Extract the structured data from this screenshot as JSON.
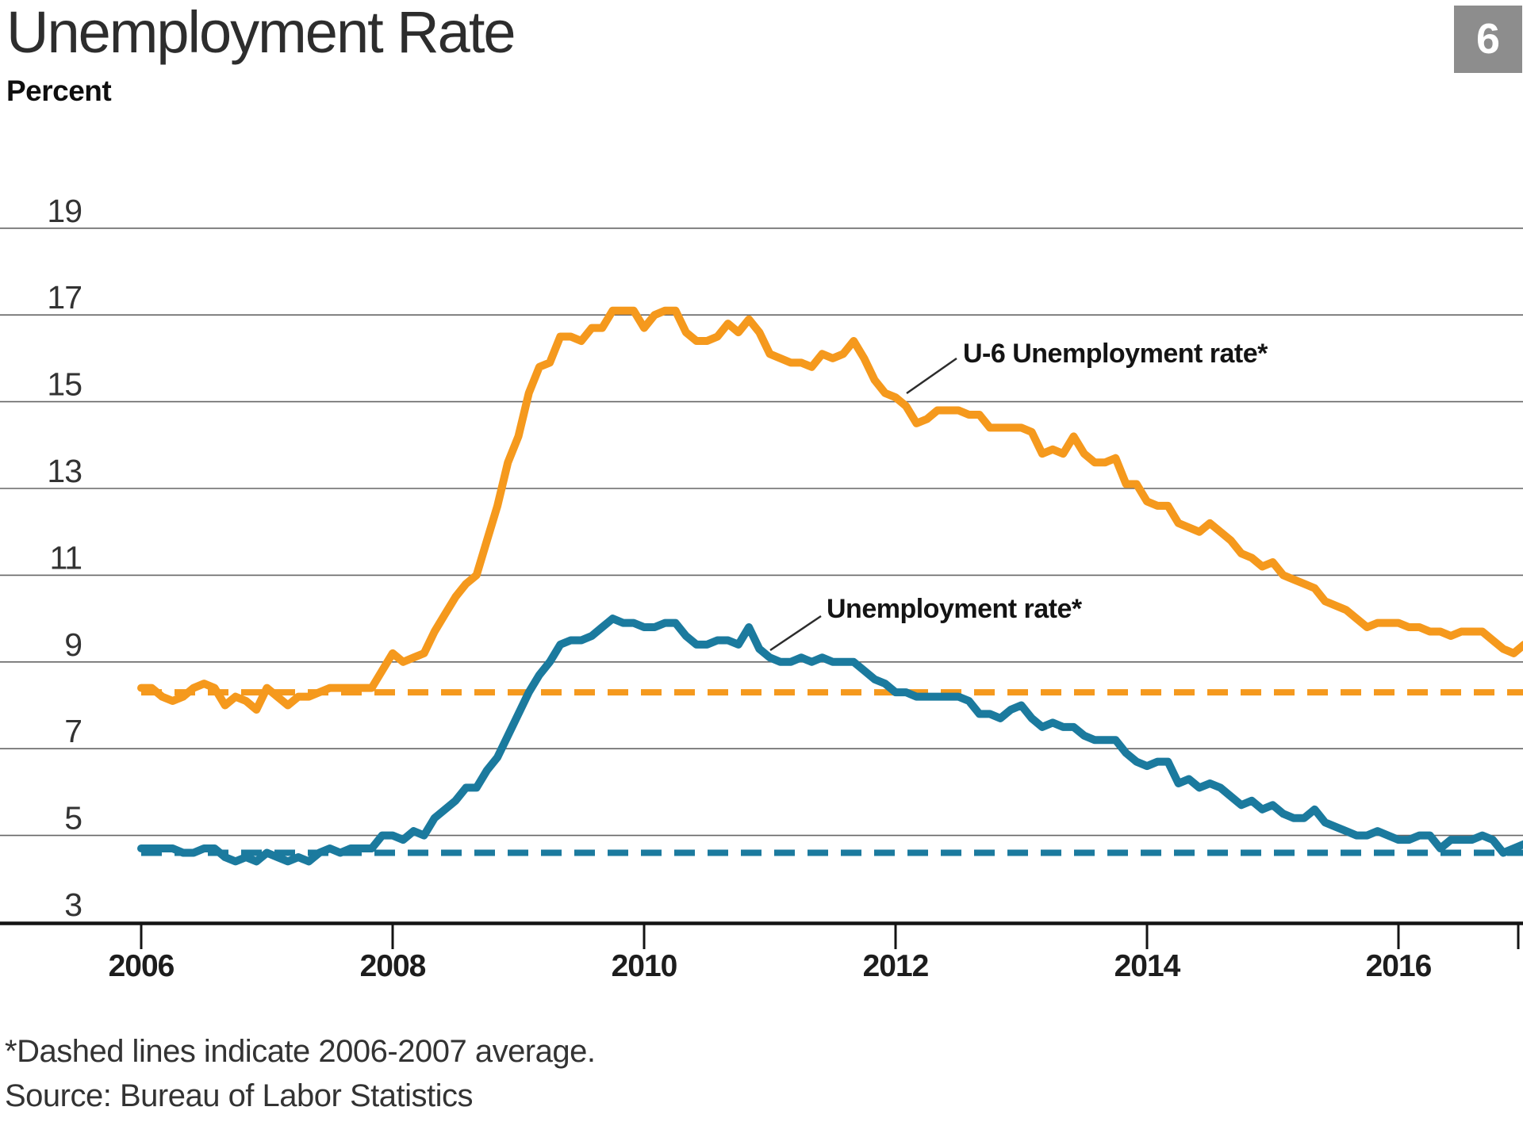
{
  "header": {
    "title": "Unemployment Rate",
    "unit_label": "Percent",
    "page_badge": "6"
  },
  "annotations": {
    "u6_label": "U-6 Unemployment rate*",
    "u3_label": "Unemployment rate*"
  },
  "footnotes": {
    "dashed_note": "*Dashed lines indicate 2006-2007 average.",
    "source": "Source: Bureau of Labor Statistics"
  },
  "colors": {
    "u6_orange": "#F5991D",
    "u3_blue": "#1B7A9E",
    "grid_gray": "#666666",
    "axis_black": "#141414",
    "badge_gray": "#8D8D8D",
    "background": "#FFFFFF"
  },
  "chart_data": {
    "type": "line",
    "title": "Unemployment Rate",
    "ylabel": "Percent",
    "xlabel": "",
    "grid": "horizontal",
    "legend_position": "inline-annotations",
    "x_interval": "monthly",
    "x_start": "2006-01",
    "x_end": "2017-01",
    "xticks": [
      2006,
      2008,
      2010,
      2012,
      2014,
      2016
    ],
    "yticks": [
      19,
      17,
      15,
      13,
      11,
      9,
      7,
      5,
      3
    ],
    "ylim": [
      3,
      20
    ],
    "series": [
      {
        "name": "U-6 Unemployment rate",
        "color": "#F5991D",
        "values": [
          8.4,
          8.4,
          8.2,
          8.1,
          8.2,
          8.4,
          8.5,
          8.4,
          8.0,
          8.2,
          8.1,
          7.9,
          8.4,
          8.2,
          8.0,
          8.2,
          8.2,
          8.3,
          8.4,
          8.4,
          8.4,
          8.4,
          8.4,
          8.8,
          9.2,
          9.0,
          9.1,
          9.2,
          9.7,
          10.1,
          10.5,
          10.8,
          11.0,
          11.8,
          12.6,
          13.6,
          14.2,
          15.2,
          15.8,
          15.9,
          16.5,
          16.5,
          16.4,
          16.7,
          16.7,
          17.1,
          17.1,
          17.1,
          16.7,
          17.0,
          17.1,
          17.1,
          16.6,
          16.4,
          16.4,
          16.5,
          16.8,
          16.6,
          16.9,
          16.6,
          16.1,
          16.0,
          15.9,
          15.9,
          15.8,
          16.1,
          16.0,
          16.1,
          16.4,
          16.0,
          15.5,
          15.2,
          15.1,
          14.9,
          14.5,
          14.6,
          14.8,
          14.8,
          14.8,
          14.7,
          14.7,
          14.4,
          14.4,
          14.4,
          14.4,
          14.3,
          13.8,
          13.9,
          13.8,
          14.2,
          13.8,
          13.6,
          13.6,
          13.7,
          13.1,
          13.1,
          12.7,
          12.6,
          12.6,
          12.2,
          12.1,
          12.0,
          12.2,
          12.0,
          11.8,
          11.5,
          11.4,
          11.2,
          11.3,
          11.0,
          10.9,
          10.8,
          10.7,
          10.4,
          10.3,
          10.2,
          10.0,
          9.8,
          9.9,
          9.9,
          9.9,
          9.8,
          9.8,
          9.7,
          9.7,
          9.6,
          9.7,
          9.7,
          9.7,
          9.5,
          9.3,
          9.2,
          9.4
        ]
      },
      {
        "name": "Unemployment rate",
        "color": "#1B7A9E",
        "values": [
          4.7,
          4.7,
          4.7,
          4.7,
          4.6,
          4.6,
          4.7,
          4.7,
          4.5,
          4.4,
          4.5,
          4.4,
          4.6,
          4.5,
          4.4,
          4.5,
          4.4,
          4.6,
          4.7,
          4.6,
          4.7,
          4.7,
          4.7,
          5.0,
          5.0,
          4.9,
          5.1,
          5.0,
          5.4,
          5.6,
          5.8,
          6.1,
          6.1,
          6.5,
          6.8,
          7.3,
          7.8,
          8.3,
          8.7,
          9.0,
          9.4,
          9.5,
          9.5,
          9.6,
          9.8,
          10.0,
          9.9,
          9.9,
          9.8,
          9.8,
          9.9,
          9.9,
          9.6,
          9.4,
          9.4,
          9.5,
          9.5,
          9.4,
          9.8,
          9.3,
          9.1,
          9.0,
          9.0,
          9.1,
          9.0,
          9.1,
          9.0,
          9.0,
          9.0,
          8.8,
          8.6,
          8.5,
          8.3,
          8.3,
          8.2,
          8.2,
          8.2,
          8.2,
          8.2,
          8.1,
          7.8,
          7.8,
          7.7,
          7.9,
          8.0,
          7.7,
          7.5,
          7.6,
          7.5,
          7.5,
          7.3,
          7.2,
          7.2,
          7.2,
          6.9,
          6.7,
          6.6,
          6.7,
          6.7,
          6.2,
          6.3,
          6.1,
          6.2,
          6.1,
          5.9,
          5.7,
          5.8,
          5.6,
          5.7,
          5.5,
          5.4,
          5.4,
          5.6,
          5.3,
          5.2,
          5.1,
          5.0,
          5.0,
          5.1,
          5.0,
          4.9,
          4.9,
          5.0,
          5.0,
          4.7,
          4.9,
          4.9,
          4.9,
          5.0,
          4.9,
          4.6,
          4.7,
          4.8
        ]
      }
    ],
    "average_lines": [
      {
        "name": "U-6 unemployment rate 2006-2007 average",
        "value": 8.3,
        "style": "dashed",
        "color": "#F5991D"
      },
      {
        "name": "Unemployment rate 2006-2007 average",
        "value": 4.6,
        "style": "dashed",
        "color": "#1B7A9E"
      }
    ]
  }
}
